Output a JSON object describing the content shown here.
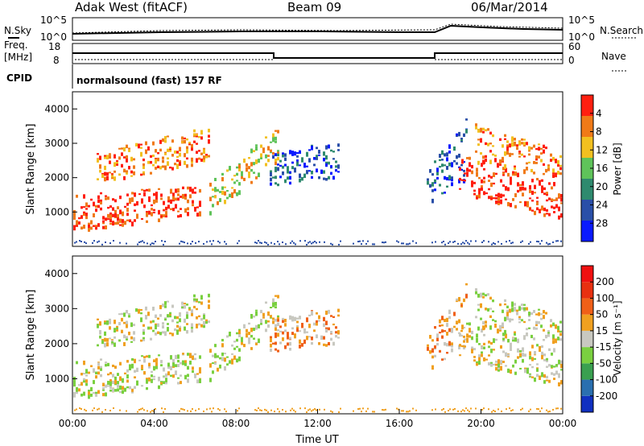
{
  "header": {
    "station": "Adak West (fitACF)",
    "beam": "Beam 09",
    "date": "06/Mar/2014"
  },
  "noise_panel": {
    "left_label": "N.Sky",
    "right_label": "N.Search",
    "left_ticks": [
      "10^5",
      "10^0"
    ],
    "right_ticks": [
      "10^5",
      "10^0"
    ]
  },
  "freq_panel": {
    "left_label_1": "Freq.",
    "left_label_2": "[MHz]",
    "left_ticks": [
      "18",
      "8"
    ],
    "right_label": "Nave",
    "right_ticks": [
      "60",
      "0"
    ]
  },
  "cpid": {
    "label": "CPID",
    "value": "normalsound (fast) 157 RF"
  },
  "chart_data": [
    {
      "type": "heatmap",
      "title": "Power",
      "ylabel": "Slant Range [km]",
      "xlabel": "",
      "ylim": [
        0,
        4500
      ],
      "yticks": [
        "1000",
        "2000",
        "3000",
        "4000"
      ],
      "colorbar": {
        "label": "Power [dB]",
        "ticks": [
          "4",
          "8",
          "12",
          "16",
          "20",
          "24",
          "28"
        ],
        "colors": [
          "#0a1aff",
          "#2a4fa8",
          "#2f8a6e",
          "#5fc35a",
          "#f2c020",
          "#f07a18",
          "#ff1f10"
        ]
      }
    },
    {
      "type": "heatmap",
      "title": "Velocity",
      "ylabel": "Slant Range [km]",
      "xlabel": "Time UT",
      "ylim": [
        0,
        4500
      ],
      "yticks": [
        "1000",
        "2000",
        "3000",
        "4000"
      ],
      "xticks": [
        "00:00",
        "04:00",
        "08:00",
        "12:00",
        "16:00",
        "20:00",
        "00:00"
      ],
      "colorbar": {
        "label": "Velocity [m s⁻¹]",
        "ticks": [
          "200",
          "100",
          "50",
          "15",
          "-15",
          "-50",
          "-100",
          "-200"
        ],
        "colors": [
          "#1030c0",
          "#2a6fb0",
          "#3aa050",
          "#7ad040",
          "#c8c8c0",
          "#f0a020",
          "#f06018",
          "#e83010",
          "#f01010"
        ]
      }
    }
  ]
}
